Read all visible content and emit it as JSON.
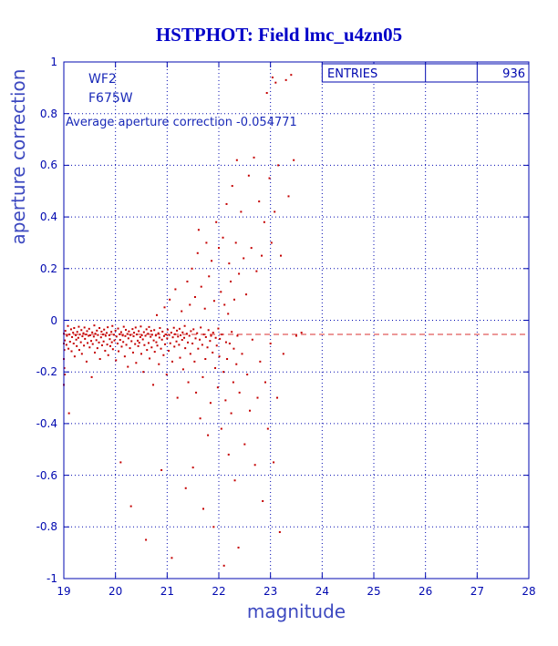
{
  "title": "HSTPHOT: Field lmc_u4zn05",
  "annotations": {
    "camera": "WF2",
    "filter": "F675W",
    "avg_line": "Average aperture correction -0.054771"
  },
  "legend": {
    "label": "ENTRIES",
    "value": "936"
  },
  "colors": {
    "axis": "#0008b0",
    "title": "#0000c8",
    "points": "#c40000",
    "mean_line": "#d93030",
    "label": "#3d49c0",
    "text": "#1a2ab8",
    "background": "#ffffff"
  },
  "chart_data": {
    "type": "scatter",
    "title": "HSTPHOT: Field lmc_u4zn05",
    "xlabel": "magnitude",
    "ylabel": "aperture correction",
    "xlim": [
      19,
      28
    ],
    "ylim": [
      -1,
      1
    ],
    "x_ticks": [
      19,
      20,
      21,
      22,
      23,
      24,
      25,
      26,
      27,
      28
    ],
    "y_ticks": [
      -1,
      -0.8,
      -0.6,
      -0.4,
      -0.2,
      0,
      0.2,
      0.4,
      0.6,
      0.8,
      1
    ],
    "grid": true,
    "legend_position": "top-right",
    "entries": 936,
    "mean_aperture_correction": -0.054771,
    "points": [
      [
        19.0,
        -0.052
      ],
      [
        19.02,
        -0.078
      ],
      [
        19.03,
        -0.041
      ],
      [
        19.05,
        -0.095
      ],
      [
        19.06,
        -0.06
      ],
      [
        19.08,
        -0.022
      ],
      [
        19.09,
        -0.11
      ],
      [
        19.1,
        -0.36
      ],
      [
        19.11,
        -0.055
      ],
      [
        19.12,
        -0.083
      ],
      [
        19.14,
        -0.035
      ],
      [
        19.15,
        -0.12
      ],
      [
        19.16,
        -0.065
      ],
      [
        19.18,
        -0.048
      ],
      [
        19.19,
        -0.09
      ],
      [
        19.2,
        -0.03
      ],
      [
        19.21,
        -0.14
      ],
      [
        19.23,
        -0.058
      ],
      [
        19.24,
        -0.075
      ],
      [
        19.25,
        -0.1
      ],
      [
        19.26,
        -0.045
      ],
      [
        19.28,
        -0.068
      ],
      [
        19.29,
        -0.025
      ],
      [
        19.3,
        -0.115
      ],
      [
        19.31,
        -0.055
      ],
      [
        19.33,
        -0.085
      ],
      [
        19.34,
        -0.038
      ],
      [
        19.35,
        -0.13
      ],
      [
        19.36,
        -0.062
      ],
      [
        19.38,
        -0.05
      ],
      [
        19.39,
        -0.098
      ],
      [
        19.4,
        -0.028
      ],
      [
        19.41,
        -0.072
      ],
      [
        19.43,
        -0.055
      ],
      [
        19.44,
        -0.16
      ],
      [
        19.45,
        -0.042
      ],
      [
        19.46,
        -0.088
      ],
      [
        19.48,
        -0.06
      ],
      [
        19.49,
        -0.033
      ],
      [
        19.5,
        -0.105
      ],
      [
        19.51,
        -0.058
      ],
      [
        19.53,
        -0.08
      ],
      [
        19.54,
        -0.22
      ],
      [
        19.55,
        -0.047
      ],
      [
        19.56,
        -0.092
      ],
      [
        19.58,
        -0.063
      ],
      [
        19.59,
        -0.02
      ],
      [
        19.6,
        -0.125
      ],
      [
        19.61,
        -0.052
      ],
      [
        19.63,
        -0.077
      ],
      [
        19.64,
        -0.04
      ],
      [
        19.65,
        -0.108
      ],
      [
        19.66,
        -0.057
      ],
      [
        19.68,
        -0.086
      ],
      [
        19.69,
        -0.03
      ],
      [
        19.7,
        -0.15
      ],
      [
        19.72,
        -0.066
      ],
      [
        19.73,
        -0.044
      ],
      [
        19.74,
        -0.097
      ],
      [
        19.76,
        -0.055
      ],
      [
        19.77,
        -0.082
      ],
      [
        19.78,
        -0.036
      ],
      [
        19.8,
        -0.118
      ],
      [
        19.81,
        -0.06
      ],
      [
        19.83,
        -0.049
      ],
      [
        19.84,
        -0.094
      ],
      [
        19.85,
        -0.027
      ],
      [
        19.86,
        -0.135
      ],
      [
        19.88,
        -0.058
      ],
      [
        19.89,
        -0.073
      ],
      [
        19.9,
        -0.1
      ],
      [
        19.92,
        -0.045
      ],
      [
        19.93,
        -0.085
      ],
      [
        19.94,
        -0.022
      ],
      [
        19.95,
        -0.112
      ],
      [
        19.97,
        -0.056
      ],
      [
        19.98,
        -0.078
      ],
      [
        20.0,
        -0.04
      ],
      [
        20.01,
        -0.155
      ],
      [
        20.02,
        -0.063
      ],
      [
        20.04,
        -0.09
      ],
      [
        20.05,
        -0.032
      ],
      [
        20.06,
        -0.12
      ],
      [
        20.08,
        -0.054
      ],
      [
        20.09,
        -0.076
      ],
      [
        20.1,
        -0.55
      ],
      [
        20.11,
        -0.046
      ],
      [
        20.12,
        -0.102
      ],
      [
        20.14,
        -0.059
      ],
      [
        20.15,
        -0.084
      ],
      [
        20.16,
        -0.025
      ],
      [
        20.18,
        -0.14
      ],
      [
        20.19,
        -0.061
      ],
      [
        20.2,
        -0.037
      ],
      [
        20.21,
        -0.095
      ],
      [
        20.23,
        -0.053
      ],
      [
        20.24,
        -0.18
      ],
      [
        20.25,
        -0.07
      ],
      [
        20.26,
        -0.043
      ],
      [
        20.28,
        -0.108
      ],
      [
        20.29,
        -0.057
      ],
      [
        20.3,
        -0.72
      ],
      [
        20.31,
        -0.081
      ],
      [
        20.33,
        -0.034
      ],
      [
        20.34,
        -0.125
      ],
      [
        20.35,
        -0.062
      ],
      [
        20.36,
        -0.048
      ],
      [
        20.38,
        -0.092
      ],
      [
        20.39,
        -0.028
      ],
      [
        20.4,
        -0.165
      ],
      [
        20.41,
        -0.055
      ],
      [
        20.43,
        -0.079
      ],
      [
        20.44,
        -0.1
      ],
      [
        20.45,
        -0.042
      ],
      [
        20.46,
        -0.087
      ],
      [
        20.48,
        -0.065
      ],
      [
        20.49,
        -0.024
      ],
      [
        20.5,
        -0.13
      ],
      [
        20.51,
        -0.058
      ],
      [
        20.53,
        -0.074
      ],
      [
        20.54,
        -0.2
      ],
      [
        20.55,
        -0.046
      ],
      [
        20.56,
        -0.096
      ],
      [
        20.58,
        -0.06
      ],
      [
        20.59,
        -0.85
      ],
      [
        20.6,
        -0.035
      ],
      [
        20.61,
        -0.115
      ],
      [
        20.63,
        -0.052
      ],
      [
        20.64,
        -0.088
      ],
      [
        20.65,
        -0.026
      ],
      [
        20.66,
        -0.148
      ],
      [
        20.68,
        -0.064
      ],
      [
        20.69,
        -0.041
      ],
      [
        20.7,
        -0.105
      ],
      [
        20.71,
        -0.056
      ],
      [
        20.73,
        -0.25
      ],
      [
        20.74,
        -0.078
      ],
      [
        20.75,
        -0.038
      ],
      [
        20.76,
        -0.122
      ],
      [
        20.78,
        -0.059
      ],
      [
        20.79,
        -0.085
      ],
      [
        20.8,
        0.02
      ],
      [
        20.81,
        -0.098
      ],
      [
        20.83,
        -0.05
      ],
      [
        20.84,
        -0.17
      ],
      [
        20.85,
        -0.067
      ],
      [
        20.86,
        -0.03
      ],
      [
        20.88,
        -0.11
      ],
      [
        20.89,
        -0.58
      ],
      [
        20.9,
        -0.075
      ],
      [
        20.91,
        -0.044
      ],
      [
        20.93,
        -0.135
      ],
      [
        20.94,
        -0.061
      ],
      [
        20.95,
        0.05
      ],
      [
        20.96,
        -0.093
      ],
      [
        20.98,
        -0.055
      ],
      [
        20.99,
        -0.21
      ],
      [
        21.0,
        -0.07
      ],
      [
        21.01,
        -0.036
      ],
      [
        21.03,
        -0.118
      ],
      [
        21.04,
        -0.057
      ],
      [
        21.05,
        0.08
      ],
      [
        21.06,
        -0.089
      ],
      [
        21.08,
        -0.048
      ],
      [
        21.09,
        -0.92
      ],
      [
        21.1,
        -0.16
      ],
      [
        21.11,
        -0.066
      ],
      [
        21.13,
        -0.029
      ],
      [
        21.14,
        -0.102
      ],
      [
        21.15,
        -0.054
      ],
      [
        21.16,
        0.12
      ],
      [
        21.18,
        -0.082
      ],
      [
        21.19,
        -0.04
      ],
      [
        21.2,
        -0.3
      ],
      [
        21.21,
        -0.063
      ],
      [
        21.23,
        -0.095
      ],
      [
        21.24,
        -0.033
      ],
      [
        21.25,
        -0.145
      ],
      [
        21.26,
        -0.058
      ],
      [
        21.28,
        0.035
      ],
      [
        21.29,
        -0.076
      ],
      [
        21.3,
        -0.047
      ],
      [
        21.31,
        -0.19
      ],
      [
        21.33,
        -0.068
      ],
      [
        21.34,
        -0.022
      ],
      [
        21.35,
        -0.108
      ],
      [
        21.36,
        -0.65
      ],
      [
        21.38,
        -0.052
      ],
      [
        21.39,
        0.15
      ],
      [
        21.4,
        -0.086
      ],
      [
        21.41,
        -0.24
      ],
      [
        21.43,
        -0.06
      ],
      [
        21.44,
        0.06
      ],
      [
        21.45,
        -0.13
      ],
      [
        21.46,
        -0.042
      ],
      [
        21.48,
        0.2
      ],
      [
        21.49,
        -0.09
      ],
      [
        21.5,
        -0.57
      ],
      [
        21.51,
        -0.035
      ],
      [
        21.53,
        -0.16
      ],
      [
        21.54,
        0.09
      ],
      [
        21.55,
        -0.07
      ],
      [
        21.56,
        -0.28
      ],
      [
        21.58,
        -0.05
      ],
      [
        21.59,
        0.26
      ],
      [
        21.6,
        -0.11
      ],
      [
        21.61,
        0.35
      ],
      [
        21.63,
        -0.075
      ],
      [
        21.64,
        -0.38
      ],
      [
        21.65,
        -0.028
      ],
      [
        21.66,
        0.13
      ],
      [
        21.68,
        -0.095
      ],
      [
        21.69,
        -0.22
      ],
      [
        21.7,
        -0.73
      ],
      [
        21.71,
        -0.055
      ],
      [
        21.73,
        0.045
      ],
      [
        21.74,
        -0.15
      ],
      [
        21.75,
        -0.065
      ],
      [
        21.76,
        0.3
      ],
      [
        21.78,
        -0.105
      ],
      [
        21.79,
        -0.445
      ],
      [
        21.8,
        -0.038
      ],
      [
        21.81,
        0.17
      ],
      [
        21.83,
        -0.08
      ],
      [
        21.84,
        -0.32
      ],
      [
        21.85,
        -0.06
      ],
      [
        21.86,
        0.23
      ],
      [
        21.88,
        -0.125
      ],
      [
        21.89,
        -0.048
      ],
      [
        21.9,
        -0.8
      ],
      [
        21.91,
        0.075
      ],
      [
        21.93,
        -0.185
      ],
      [
        21.94,
        -0.068
      ],
      [
        21.95,
        0.38
      ],
      [
        21.96,
        -0.098
      ],
      [
        21.98,
        -0.26
      ],
      [
        21.99,
        -0.032
      ],
      [
        22.0,
        0.28
      ],
      [
        22.01,
        -0.14
      ],
      [
        22.02,
        -0.072
      ],
      [
        22.04,
        0.11
      ],
      [
        22.05,
        -0.42
      ],
      [
        22.06,
        -0.055
      ],
      [
        22.08,
        0.32
      ],
      [
        22.09,
        -0.2
      ],
      [
        22.1,
        -0.95
      ],
      [
        22.11,
        0.06
      ],
      [
        22.13,
        -0.31
      ],
      [
        22.14,
        -0.085
      ],
      [
        22.15,
        0.45
      ],
      [
        22.16,
        -0.15
      ],
      [
        22.18,
        0.025
      ],
      [
        22.19,
        -0.52
      ],
      [
        22.2,
        0.22
      ],
      [
        22.21,
        -0.09
      ],
      [
        22.23,
        0.15
      ],
      [
        22.24,
        -0.36
      ],
      [
        22.25,
        -0.045
      ],
      [
        22.26,
        0.52
      ],
      [
        22.28,
        -0.24
      ],
      [
        22.29,
        -0.11
      ],
      [
        22.3,
        0.08
      ],
      [
        22.31,
        -0.62
      ],
      [
        22.33,
        0.3
      ],
      [
        22.34,
        -0.17
      ],
      [
        22.35,
        0.62
      ],
      [
        22.36,
        -0.06
      ],
      [
        22.38,
        -0.88
      ],
      [
        22.39,
        0.18
      ],
      [
        22.4,
        -0.28
      ],
      [
        22.43,
        0.42
      ],
      [
        22.45,
        -0.13
      ],
      [
        22.48,
        0.24
      ],
      [
        22.5,
        -0.48
      ],
      [
        22.53,
        0.1
      ],
      [
        22.55,
        -0.21
      ],
      [
        22.58,
        0.56
      ],
      [
        22.6,
        -0.35
      ],
      [
        22.63,
        0.28
      ],
      [
        22.65,
        -0.075
      ],
      [
        22.68,
        0.63
      ],
      [
        22.7,
        -0.56
      ],
      [
        22.73,
        0.19
      ],
      [
        22.75,
        -0.3
      ],
      [
        22.78,
        0.46
      ],
      [
        22.8,
        -0.16
      ],
      [
        22.83,
        0.25
      ],
      [
        22.85,
        -0.7
      ],
      [
        22.88,
        0.38
      ],
      [
        22.9,
        -0.24
      ],
      [
        22.93,
        0.88
      ],
      [
        22.95,
        -0.42
      ],
      [
        22.98,
        0.55
      ],
      [
        23.0,
        -0.09
      ],
      [
        23.02,
        0.3
      ],
      [
        23.04,
        0.94
      ],
      [
        23.06,
        -0.55
      ],
      [
        23.08,
        0.42
      ],
      [
        23.1,
        0.92
      ],
      [
        23.13,
        -0.3
      ],
      [
        23.15,
        0.6
      ],
      [
        23.18,
        -0.82
      ],
      [
        23.2,
        0.25
      ],
      [
        23.25,
        -0.13
      ],
      [
        23.3,
        0.93
      ],
      [
        23.35,
        0.48
      ],
      [
        23.4,
        0.95
      ],
      [
        23.45,
        0.62
      ],
      [
        23.5,
        -0.06
      ],
      [
        23.6,
        -0.048
      ],
      [
        19.0,
        -0.15
      ],
      [
        19.01,
        -0.115
      ],
      [
        19.01,
        -0.185
      ],
      [
        19.02,
        -0.21
      ],
      [
        19.0,
        -0.09
      ],
      [
        19.0,
        -0.25
      ]
    ]
  }
}
